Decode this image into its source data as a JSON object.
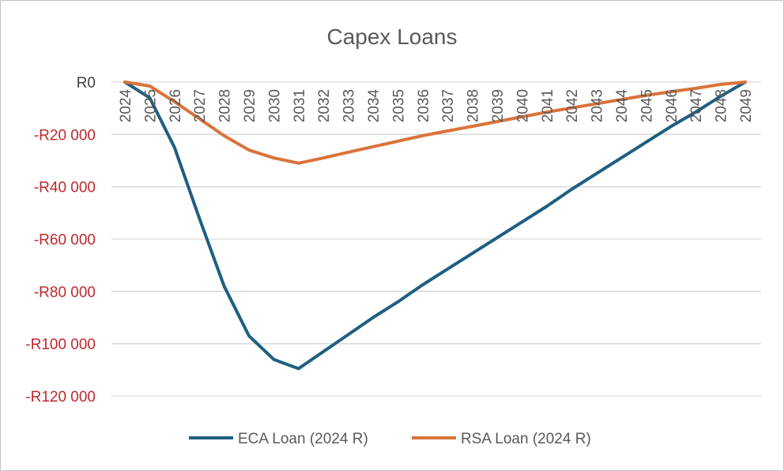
{
  "chart_data": {
    "type": "line",
    "title": "Capex Loans",
    "xlabel": "",
    "ylabel": "",
    "x": [
      "2024",
      "2025",
      "2026",
      "2027",
      "2028",
      "2029",
      "2030",
      "2031",
      "2032",
      "2033",
      "2034",
      "2035",
      "2036",
      "2037",
      "2038",
      "2039",
      "2040",
      "2041",
      "2042",
      "2043",
      "2044",
      "2045",
      "2046",
      "2047",
      "2048",
      "2049"
    ],
    "ylim": [
      -120000,
      0
    ],
    "yticks": [
      0,
      -20000,
      -40000,
      -60000,
      -80000,
      -100000,
      -120000
    ],
    "ytick_labels": [
      "R0",
      "-R20 000",
      "-R40 000",
      "-R60 000",
      "-R80 000",
      "-R100 000",
      "-R120 000"
    ],
    "negative_label_color": "#c0282d",
    "zero_label_color": "#404040",
    "grid": true,
    "legend_position": "bottom",
    "series": [
      {
        "name": "ECA Loan (2024 R)",
        "color": "#1f5f80",
        "values": [
          0,
          -6000,
          -25000,
          -52000,
          -78000,
          -97000,
          -106000,
          -109500,
          -103000,
          -96500,
          -90000,
          -84000,
          -77500,
          -71500,
          -65500,
          -59500,
          -53500,
          -47500,
          -41000,
          -35000,
          -29000,
          -23000,
          -17000,
          -11500,
          -5500,
          0
        ]
      },
      {
        "name": "RSA Loan (2024 R)",
        "color": "#d9733a",
        "values": [
          0,
          -1500,
          -7500,
          -14000,
          -20500,
          -26000,
          -29000,
          -31000,
          -29000,
          -26800,
          -24700,
          -22600,
          -20500,
          -18700,
          -16900,
          -15100,
          -13300,
          -11500,
          -9900,
          -8300,
          -6700,
          -5100,
          -3700,
          -2400,
          -900,
          0
        ]
      }
    ]
  }
}
